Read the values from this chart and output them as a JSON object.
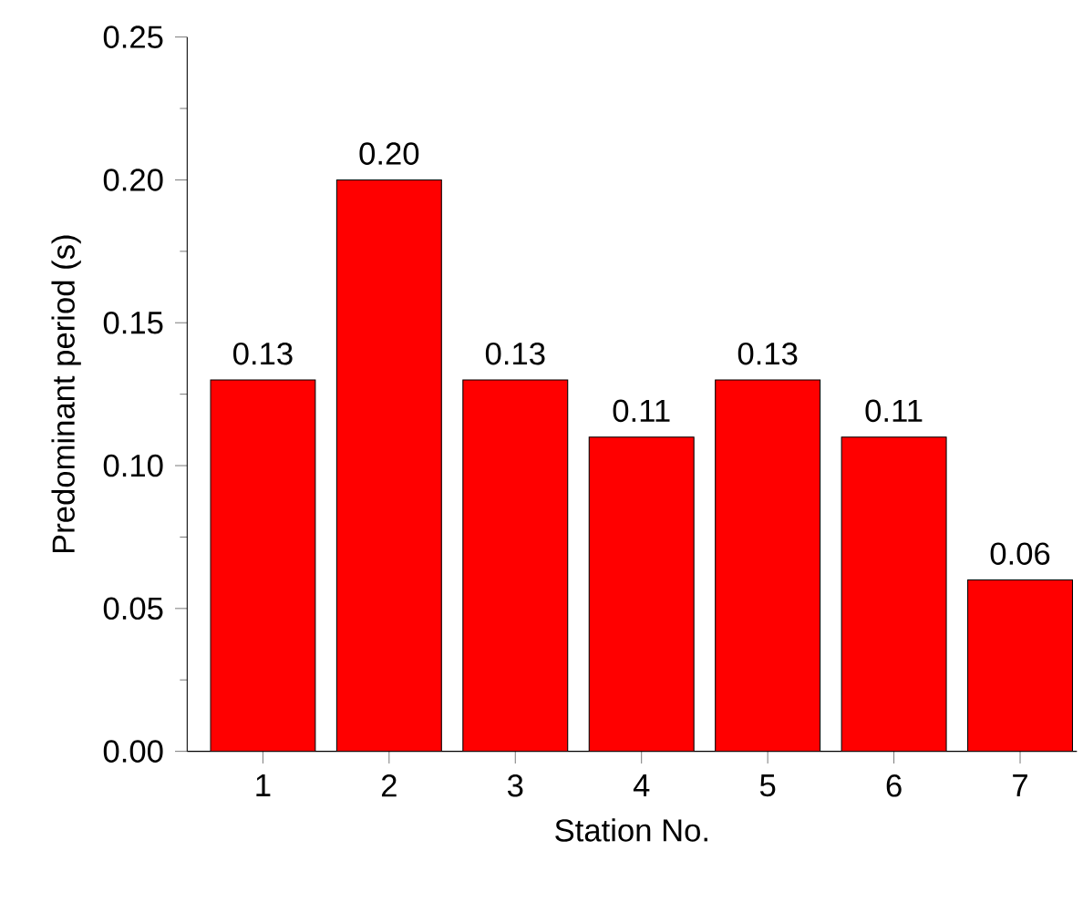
{
  "chart_data": {
    "type": "bar",
    "xlabel": "Station No.",
    "ylabel": "Predominant period (s)",
    "categories": [
      "1",
      "2",
      "3",
      "4",
      "5",
      "6",
      "7"
    ],
    "values": [
      0.13,
      0.2,
      0.13,
      0.11,
      0.13,
      0.11,
      0.06
    ],
    "value_labels": [
      "0.13",
      "0.20",
      "0.13",
      "0.11",
      "0.13",
      "0.11",
      "0.06"
    ],
    "color": "#ff0000",
    "ylim": [
      0,
      0.25
    ],
    "yticks": [
      {
        "value": 0,
        "label": "0.00"
      },
      {
        "value": 0.05,
        "label": "0.05"
      },
      {
        "value": 0.1,
        "label": "0.10"
      },
      {
        "value": 0.15,
        "label": "0.15"
      },
      {
        "value": 0.2,
        "label": "0.20"
      },
      {
        "value": 0.25,
        "label": "0.25"
      }
    ],
    "grid": false
  }
}
